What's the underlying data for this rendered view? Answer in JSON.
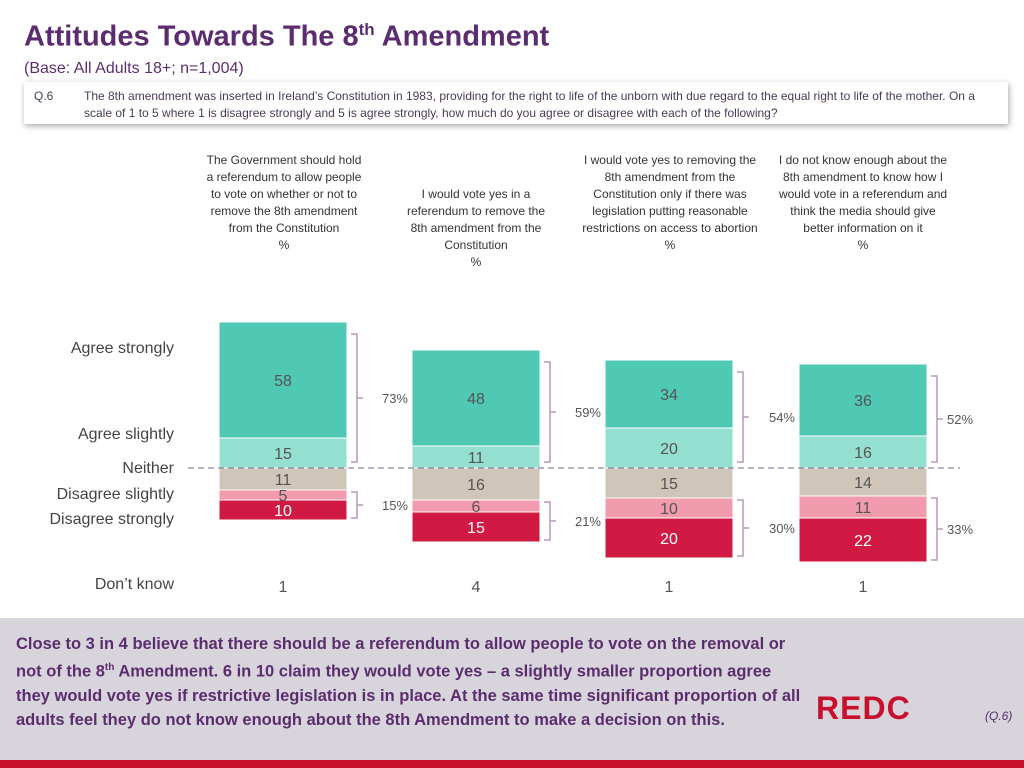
{
  "header": {
    "title_main": "Attitudes Towards The 8",
    "title_sup": "th",
    "title_end": " Amendment",
    "base": "(Base: All Adults 18+; n=1,004)"
  },
  "question": {
    "number": "Q.6",
    "text": "The 8th amendment was inserted in Ireland’s Constitution in 1983, providing for the right to life of the unborn with due regard to the equal right to life of the mother. On a scale of 1 to 5 where 1 is disagree strongly and 5 is agree strongly, how much do you agree or disagree with each of the following?"
  },
  "columns": [
    {
      "label": "The Government should hold a referendum to allow people to vote on whether or not to remove the 8th amendment from the Constitution",
      "pct": "%"
    },
    {
      "label": "I would vote yes in a referendum to remove the 8th amendment from the Constitution",
      "pct": "%"
    },
    {
      "label": "I would vote yes to removing the 8th amendment from the Constitution only if there was legislation putting reasonable restrictions on access to abortion",
      "pct": "%"
    },
    {
      "label": "I do not know enough about the 8th amendment to know how I would vote in a referendum and think the media should give better information on it",
      "pct": "%"
    }
  ],
  "rows": {
    "agree_strongly": "Agree strongly",
    "agree_slightly": "Agree slightly",
    "neither": "Neither",
    "disagree_slightly": "Disagree slightly",
    "disagree_strongly": "Disagree strongly",
    "dont_know": "Don’t know"
  },
  "chart_data": {
    "type": "bar",
    "stacked": true,
    "categories": [
      "The Government should hold a referendum to allow people to vote on whether or not to remove the 8th amendment from the Constitution",
      "I would vote yes in a referendum to remove the 8th amendment from the Constitution",
      "I would vote yes to removing the 8th amendment from the Constitution only if there was legislation putting reasonable restrictions on access to abortion",
      "I do not know enough about the 8th amendment to know how I would vote in a referendum and think the media should give better information on it"
    ],
    "series": [
      {
        "name": "Agree strongly",
        "color": "#4fc8b4",
        "values": [
          58,
          48,
          34,
          36
        ]
      },
      {
        "name": "Agree slightly",
        "color": "#93e0d0",
        "values": [
          15,
          11,
          20,
          16
        ]
      },
      {
        "name": "Neither",
        "color": "#cfc5b9",
        "values": [
          11,
          16,
          15,
          14
        ]
      },
      {
        "name": "Disagree slightly",
        "color": "#f29aae",
        "values": [
          5,
          6,
          10,
          11
        ]
      },
      {
        "name": "Disagree strongly",
        "color": "#d01a44",
        "values": [
          10,
          15,
          20,
          22
        ]
      }
    ],
    "dont_know": [
      1,
      4,
      1,
      1
    ],
    "net_agree": [
      "73%",
      "59%",
      "54%",
      "52%"
    ],
    "net_disagree": [
      "15%",
      "21%",
      "30%",
      "33%"
    ],
    "unit": "%"
  },
  "footer": {
    "part1": "Close to 3 in 4 believe that there should be a referendum to allow people to vote on the removal or not of the 8",
    "sup": "th",
    "part2": " Amendment. 6 in 10 claim they would vote yes – a slightly smaller proportion agree they would vote yes if restrictive legislation is in place.  At the same time significant proportion of all adults feel they do not know enough about the 8th Amendment to make a decision on this.",
    "logo": "REDC",
    "ref": "(Q.6)"
  }
}
